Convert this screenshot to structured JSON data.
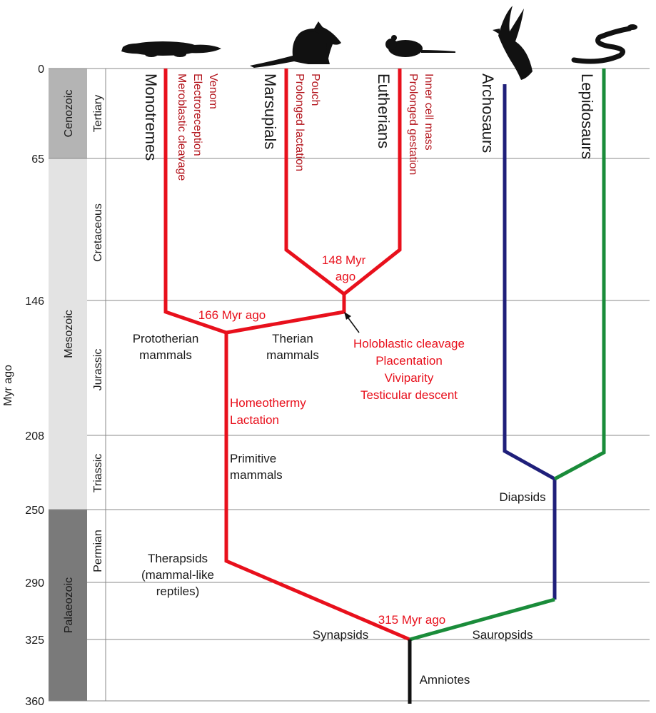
{
  "axis": {
    "label": "Myr ago",
    "ticks": [
      "0",
      "65",
      "146",
      "208",
      "250",
      "290",
      "325",
      "360"
    ]
  },
  "eras": {
    "cenozoic": "Cenozoic",
    "mesozoic": "Mesozoic",
    "palaeozoic": "Palaeozoic"
  },
  "periods": {
    "tertiary": "Tertiary",
    "cretaceous": "Cretaceous",
    "jurassic": "Jurassic",
    "triassic": "Triassic",
    "permian": "Permian"
  },
  "taxa": {
    "monotremes": "Monotremes",
    "marsupials": "Marsupials",
    "eutherians": "Eutherians",
    "archosaurs": "Archosaurs",
    "lepidosaurs": "Lepidosaurs"
  },
  "traits": {
    "monotremes": [
      "Venom",
      "Electroreception",
      "Meroblastic cleavage"
    ],
    "marsupials": [
      "Pouch",
      "Prolonged lactation"
    ],
    "eutherians": [
      "Inner cell mass",
      "Prolonged gestation"
    ],
    "therian": [
      "Holoblastic cleavage",
      "Placentation",
      "Viviparity",
      "Testicular descent"
    ],
    "mammal": [
      "Homeothermy",
      "Lactation"
    ]
  },
  "nodes": {
    "therian_split": "148 Myr ago",
    "mammal_split": "166 Myr ago",
    "amniote_split": "315 Myr ago"
  },
  "labels": {
    "prototherian": [
      "Prototherian",
      "mammals"
    ],
    "therian": [
      "Therian",
      "mammals"
    ],
    "primitive": [
      "Primitive",
      "mammals"
    ],
    "therapsids": [
      "Therapsids",
      "(mammal-like",
      "reptiles)"
    ],
    "diapsids": "Diapsids",
    "synapsids": "Synapsids",
    "sauropsids": "Sauropsids",
    "amniotes": "Amniotes"
  },
  "silhouettes": [
    "platypus-silhouette",
    "kangaroo-silhouette",
    "mouse-silhouette",
    "bird-silhouette",
    "snake-silhouette"
  ],
  "colors": {
    "mammal_lineage": "#e8101c",
    "archosaur_lineage": "#1f1f7a",
    "lepidosaur_lineage": "#1a8c3a",
    "amniote_stem": "#111111",
    "trait_text": "#b3141c",
    "cenozoic_bar": "#b4b4b4",
    "mesozoic_bar": "#e3e3e3",
    "palaeozoic_bar": "#7a7a7a"
  }
}
